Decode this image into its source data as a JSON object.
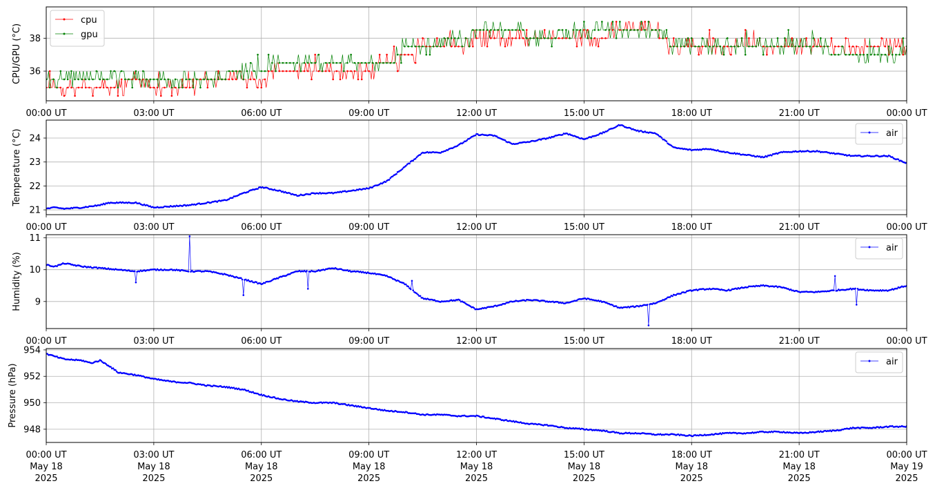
{
  "x_ticks": [
    "00:00 UT",
    "03:00 UT",
    "06:00 UT",
    "09:00 UT",
    "12:00 UT",
    "15:00 UT",
    "18:00 UT",
    "21:00 UT",
    "00:00 UT"
  ],
  "x_date_ticks": [
    [
      "May 18",
      "2025"
    ],
    [
      "May 18",
      "2025"
    ],
    [
      "May 18",
      "2025"
    ],
    [
      "May 18",
      "2025"
    ],
    [
      "May 18",
      "2025"
    ],
    [
      "May 18",
      "2025"
    ],
    [
      "May 18",
      "2025"
    ],
    [
      "May 18",
      "2025"
    ],
    [
      "May 19",
      "2025"
    ]
  ],
  "chart_data": [
    {
      "type": "line",
      "ylabel": "CPU/GPU (°C)",
      "xlim": [
        "2025-05-18 00:00",
        "2025-05-19 00:00"
      ],
      "ylim": [
        34.2,
        39.9
      ],
      "yticks": [
        36,
        38
      ],
      "grid": true,
      "legend": "top-left",
      "series": [
        {
          "name": "cpu",
          "color": "#ff0000",
          "style": "jumpy",
          "x": [
            0,
            1.5,
            2.5,
            3.5,
            4.5,
            5.5,
            6.5,
            7.5,
            8.5,
            9.5,
            10,
            10.5,
            11.5,
            12,
            13,
            14,
            15,
            16,
            17,
            17.5,
            18.5,
            19.5,
            20.5,
            21.5,
            22.5,
            23.5,
            24
          ],
          "y": [
            34.9,
            34.9,
            35.4,
            34.9,
            35.4,
            35.4,
            35.9,
            35.9,
            35.9,
            36.4,
            36.9,
            37.4,
            37.4,
            37.9,
            37.9,
            37.9,
            37.9,
            38.4,
            38.4,
            37.4,
            37.4,
            37.4,
            37.4,
            37.4,
            37.4,
            37.4,
            37.4
          ]
        },
        {
          "name": "gpu",
          "color": "#008000",
          "style": "jumpy",
          "x": [
            0,
            1.5,
            2.5,
            3.5,
            4.5,
            5.5,
            6.5,
            7.5,
            8.5,
            9.5,
            10,
            10.5,
            11.5,
            12,
            13,
            14,
            15,
            16,
            17,
            17.5,
            18.5,
            19.5,
            20.5,
            21.5,
            22.5,
            23.5,
            24
          ],
          "y": [
            35.4,
            35.4,
            35.4,
            35.4,
            35.4,
            35.9,
            36.4,
            36.4,
            36.4,
            36.4,
            37.4,
            37.4,
            37.9,
            38.4,
            38.4,
            37.9,
            38.4,
            38.4,
            38.4,
            37.4,
            37.4,
            37.4,
            37.4,
            37.4,
            36.9,
            36.9,
            36.9
          ]
        }
      ]
    },
    {
      "type": "line",
      "ylabel": "Temperature (°C)",
      "xlim": [
        "2025-05-18 00:00",
        "2025-05-19 00:00"
      ],
      "ylim": [
        20.8,
        24.75
      ],
      "yticks": [
        21,
        22,
        23,
        24
      ],
      "grid": true,
      "legend": "top-right",
      "series": [
        {
          "name": "air",
          "color": "#0000ff",
          "style": "smooth",
          "x": [
            0,
            0.25,
            0.5,
            1,
            1.5,
            1.75,
            2,
            2.5,
            3,
            3.5,
            4,
            4.5,
            5,
            5.5,
            6,
            6.5,
            7,
            7.5,
            8,
            8.5,
            9,
            9.5,
            10,
            10.5,
            11,
            11.5,
            12,
            12.5,
            13,
            13.5,
            14,
            14.5,
            15,
            15.5,
            16,
            16.5,
            17,
            17.5,
            18,
            18.5,
            19,
            19.5,
            20,
            20.5,
            21,
            21.5,
            22,
            22.5,
            23,
            23.5,
            24
          ],
          "y": [
            21.05,
            21.1,
            21.05,
            21.1,
            21.2,
            21.3,
            21.3,
            21.3,
            21.1,
            21.15,
            21.2,
            21.3,
            21.4,
            21.7,
            21.95,
            21.8,
            21.6,
            21.7,
            21.7,
            21.8,
            21.9,
            22.2,
            22.8,
            23.4,
            23.4,
            23.7,
            24.15,
            24.1,
            23.75,
            23.85,
            24.0,
            24.2,
            23.95,
            24.2,
            24.55,
            24.3,
            24.2,
            23.6,
            23.5,
            23.55,
            23.4,
            23.3,
            23.2,
            23.4,
            23.45,
            23.45,
            23.35,
            23.25,
            23.25,
            23.25,
            22.95
          ]
        }
      ]
    },
    {
      "type": "line",
      "ylabel": "Humidity (%)",
      "xlim": [
        "2025-05-18 00:00",
        "2025-05-19 00:00"
      ],
      "ylim": [
        8.15,
        11.1
      ],
      "yticks": [
        9,
        10,
        11
      ],
      "grid": true,
      "legend": "top-right",
      "series": [
        {
          "name": "air",
          "color": "#0000ff",
          "style": "smooth",
          "x": [
            0,
            0.25,
            0.5,
            1,
            1.5,
            2,
            2.5,
            3,
            3.5,
            4,
            4.5,
            5,
            5.5,
            6,
            6.5,
            7,
            7.5,
            8,
            8.5,
            9,
            9.5,
            10,
            10.5,
            11,
            11.5,
            12,
            12.5,
            13,
            13.5,
            14,
            14.5,
            15,
            15.5,
            16,
            16.5,
            17,
            17.5,
            18,
            18.5,
            19,
            19.5,
            20,
            20.5,
            21,
            21.5,
            22,
            22.5,
            23,
            23.5,
            24
          ],
          "y": [
            10.15,
            10.1,
            10.2,
            10.1,
            10.05,
            10.0,
            9.95,
            10.0,
            10.0,
            9.95,
            9.95,
            9.85,
            9.7,
            9.55,
            9.75,
            9.95,
            9.95,
            10.05,
            9.95,
            9.9,
            9.8,
            9.55,
            9.1,
            9.0,
            9.05,
            8.75,
            8.85,
            9.0,
            9.05,
            9.0,
            8.95,
            9.1,
            9.0,
            8.8,
            8.85,
            8.95,
            9.2,
            9.35,
            9.4,
            9.35,
            9.45,
            9.5,
            9.45,
            9.3,
            9.3,
            9.35,
            9.4,
            9.35,
            9.35,
            9.5
          ],
          "spikes": [
            [
              4,
              11.05
            ],
            [
              5.5,
              9.2
            ],
            [
              7.3,
              9.4
            ],
            [
              2.5,
              9.6
            ],
            [
              10.2,
              9.65
            ],
            [
              16.8,
              8.25
            ],
            [
              22.0,
              9.8
            ],
            [
              22.6,
              8.9
            ]
          ]
        }
      ]
    },
    {
      "type": "line",
      "ylabel": "Pressure (hPa)",
      "xlim": [
        "2025-05-18 00:00",
        "2025-05-19 00:00"
      ],
      "ylim": [
        947.0,
        954.1
      ],
      "yticks": [
        948,
        950,
        952,
        954
      ],
      "grid": true,
      "legend": "top-right",
      "series": [
        {
          "name": "air",
          "color": "#0000ff",
          "style": "smooth",
          "x": [
            0,
            0.5,
            1,
            1.25,
            1.5,
            1.75,
            2,
            2.5,
            3,
            3.5,
            4,
            4.5,
            5,
            5.5,
            6,
            6.5,
            7,
            7.5,
            8,
            8.5,
            9,
            9.5,
            10,
            10.5,
            11,
            11.5,
            12,
            12.5,
            13,
            13.5,
            14,
            14.5,
            15,
            15.5,
            16,
            16.5,
            17,
            17.5,
            18,
            18.5,
            19,
            19.5,
            20,
            20.5,
            21,
            21.5,
            22,
            22.5,
            23,
            23.5,
            24
          ],
          "y": [
            953.7,
            953.3,
            953.2,
            953.0,
            953.2,
            952.8,
            952.3,
            952.1,
            951.8,
            951.6,
            951.5,
            951.3,
            951.2,
            951.0,
            950.6,
            950.3,
            950.1,
            950.0,
            950.0,
            949.8,
            949.6,
            949.4,
            949.3,
            949.1,
            949.1,
            949.0,
            949.0,
            948.8,
            948.6,
            948.4,
            948.3,
            948.1,
            948.0,
            947.9,
            947.7,
            947.7,
            947.6,
            947.6,
            947.5,
            947.6,
            947.7,
            947.7,
            947.8,
            947.8,
            947.7,
            947.8,
            947.9,
            948.1,
            948.1,
            948.2,
            948.2
          ]
        }
      ]
    }
  ]
}
